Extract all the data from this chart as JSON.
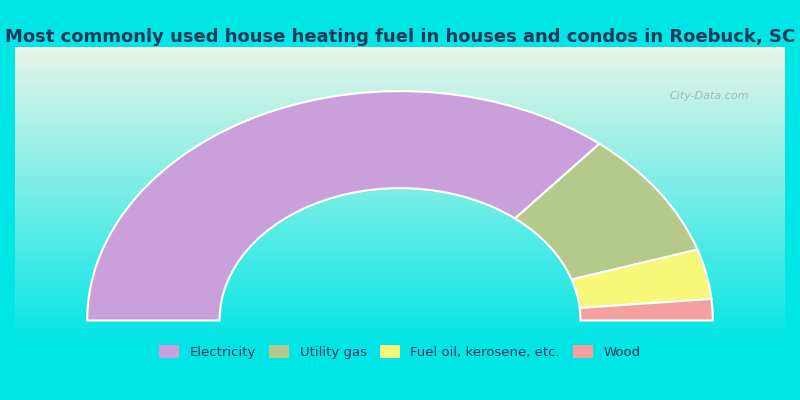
{
  "title": "Most commonly used house heating fuel in houses and condos in Roebuck, SC",
  "categories": [
    "Electricity",
    "Utility gas",
    "Fuel oil, kerosene, etc.",
    "Wood"
  ],
  "values": [
    72,
    18,
    7,
    3
  ],
  "colors": [
    "#c9a0dc",
    "#b5c98a",
    "#f7f77a",
    "#f4a0a0"
  ],
  "background_top": "#e8f5e8",
  "background_bottom": "#00e5e5",
  "title_color": "#1a3a5c",
  "legend_text_color": "#1a3a5c",
  "watermark": "City-Data.com"
}
